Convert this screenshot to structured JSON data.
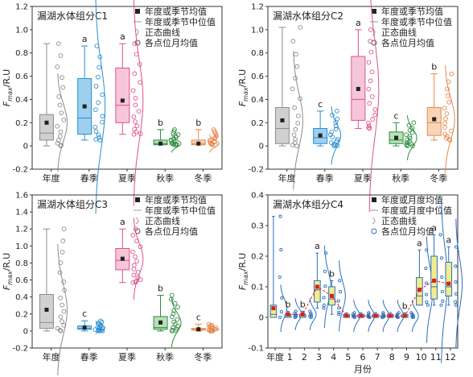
{
  "chart_data": [
    {
      "type": "box",
      "title": "漏湖水体组分C1",
      "ylabel_main": "F",
      "ylabel_sub": "max",
      "ylabel_unit": "/R.U",
      "ylim": [
        -0.2,
        1.2
      ],
      "yticks": [
        "-0.2",
        "0",
        "0.2",
        "0.4",
        "0.6",
        "0.8",
        "1.0",
        "1.2"
      ],
      "legend": [
        "年度或季节均值",
        "年度或季节中位值",
        "正态曲线",
        "各点位月均值"
      ],
      "categories": [
        "年度",
        "春季",
        "夏季",
        "秋季",
        "冬季"
      ],
      "colors": [
        "#8c8c8c",
        "#2b8fd0",
        "#e0518a",
        "#2e8b3e",
        "#e8874a"
      ],
      "fills": [
        "#d0d0d0",
        "#9ecfee",
        "#f6c6d8",
        "#b9dfb9",
        "#f8d5b8"
      ],
      "letters": [
        "",
        "a",
        "a",
        "b",
        "b"
      ],
      "boxes": [
        {
          "min": 0.0,
          "q1": 0.05,
          "median": 0.11,
          "q3": 0.27,
          "max": 0.88,
          "mean": 0.2
        },
        {
          "min": 0.05,
          "q1": 0.1,
          "median": 0.24,
          "q3": 0.58,
          "max": 0.86,
          "mean": 0.34
        },
        {
          "min": 0.1,
          "q1": 0.2,
          "median": 0.35,
          "q3": 0.67,
          "max": 0.88,
          "mean": 0.39
        },
        {
          "min": 0.01,
          "q1": 0.01,
          "median": 0.02,
          "q3": 0.05,
          "max": 0.14,
          "mean": 0.02
        },
        {
          "min": 0.01,
          "q1": 0.01,
          "median": 0.02,
          "q3": 0.05,
          "max": 0.14,
          "mean": 0.02
        }
      ]
    },
    {
      "type": "box",
      "title": "漏湖水体组分C2",
      "ylabel_main": "F",
      "ylabel_sub": "max",
      "ylabel_unit": "/R.U",
      "ylim": [
        -0.2,
        1.2
      ],
      "yticks": [
        "-0.2",
        "0",
        "0.2",
        "0.4",
        "0.6",
        "0.8",
        "1.0",
        "1.2"
      ],
      "legend": [
        "年度或季节均值",
        "年度或季节中位值",
        "正态曲线",
        "各点位月均值"
      ],
      "categories": [
        "年度",
        "春季",
        "夏季",
        "秋季",
        "冬季"
      ],
      "colors": [
        "#8c8c8c",
        "#2b8fd0",
        "#e0518a",
        "#2e8b3e",
        "#e8874a"
      ],
      "fills": [
        "#d0d0d0",
        "#9ecfee",
        "#f6c6d8",
        "#b9dfb9",
        "#f8d5b8"
      ],
      "letters": [
        "",
        "c",
        "a",
        "c",
        "b"
      ],
      "boxes": [
        {
          "min": 0.0,
          "q1": 0.02,
          "median": 0.15,
          "q3": 0.33,
          "max": 1.02,
          "mean": 0.22
        },
        {
          "min": 0.0,
          "q1": 0.02,
          "median": 0.07,
          "q3": 0.15,
          "max": 0.3,
          "mean": 0.09
        },
        {
          "min": 0.15,
          "q1": 0.22,
          "median": 0.4,
          "q3": 0.77,
          "max": 1.0,
          "mean": 0.49
        },
        {
          "min": 0.0,
          "q1": 0.02,
          "median": 0.05,
          "q3": 0.12,
          "max": 0.2,
          "mean": 0.07
        },
        {
          "min": 0.05,
          "q1": 0.09,
          "median": 0.2,
          "q3": 0.33,
          "max": 0.62,
          "mean": 0.23
        }
      ]
    },
    {
      "type": "box",
      "title": "漏湖水体组分C3",
      "ylabel_main": "F",
      "ylabel_sub": "max",
      "ylabel_unit": "/R.U",
      "ylim": [
        -0.2,
        1.6
      ],
      "yticks": [
        "-0.2",
        "0",
        "0.2",
        "0.4",
        "0.6",
        "0.8",
        "1.0",
        "1.2",
        "1.4",
        "1.6"
      ],
      "legend": [
        "年度或季节均值",
        "年度或季节中位值",
        "正态曲线",
        "各点位月均值"
      ],
      "categories": [
        "年度",
        "春季",
        "夏季",
        "秋季",
        "冬季"
      ],
      "colors": [
        "#8c8c8c",
        "#2b8fd0",
        "#e0518a",
        "#2e8b3e",
        "#e8874a"
      ],
      "fills": [
        "#d0d0d0",
        "#9ecfee",
        "#f6c6d8",
        "#b9dfb9",
        "#f8d5b8"
      ],
      "letters": [
        "",
        "c",
        "a",
        "b",
        "c"
      ],
      "boxes": [
        {
          "min": 0.0,
          "q1": 0.03,
          "median": 0.1,
          "q3": 0.43,
          "max": 1.2,
          "mean": 0.25
        },
        {
          "min": 0.0,
          "q1": 0.02,
          "median": 0.03,
          "q3": 0.06,
          "max": 0.12,
          "mean": 0.04
        },
        {
          "min": 0.57,
          "q1": 0.72,
          "median": 0.83,
          "q3": 0.97,
          "max": 1.2,
          "mean": 0.85
        },
        {
          "min": 0.0,
          "q1": 0.02,
          "median": 0.04,
          "q3": 0.17,
          "max": 0.42,
          "mean": 0.1
        },
        {
          "min": 0.0,
          "q1": 0.01,
          "median": 0.02,
          "q3": 0.03,
          "max": 0.08,
          "mean": 0.02
        }
      ]
    },
    {
      "type": "box",
      "title": "漏湖水体组分C4",
      "ylabel_main": "F",
      "ylabel_sub": "max",
      "ylabel_unit": "/R.U",
      "xlabel": "月份",
      "ylim": [
        -0.1,
        0.4
      ],
      "yticks": [
        "-0.1",
        "0",
        "0.1",
        "0.2",
        "0.3",
        "0.4"
      ],
      "legend": [
        "年度或月度均值",
        "年度或月度中位值",
        "正态曲线",
        "各点位月均值"
      ],
      "categories": [
        "年度",
        "1",
        "2",
        "3",
        "4",
        "5",
        "6",
        "7",
        "8",
        "9",
        "10",
        "11",
        "12"
      ],
      "box_color": "#2b6fc0",
      "box_fill": "#f3ec8c",
      "mean_color": "#d32020",
      "letters": [
        "",
        "b",
        "b",
        "a",
        "b",
        "",
        "",
        "",
        "",
        "b",
        "a",
        "a",
        "a"
      ],
      "boxes": [
        {
          "min": 0.0,
          "q1": 0.0,
          "median": 0.01,
          "q3": 0.04,
          "max": 0.33,
          "mean": 0.03
        },
        {
          "min": 0.0,
          "q1": 0.0,
          "median": 0.005,
          "q3": 0.01,
          "max": 0.02,
          "mean": 0.01
        },
        {
          "min": 0.0,
          "q1": 0.0,
          "median": 0.005,
          "q3": 0.01,
          "max": 0.02,
          "mean": 0.01
        },
        {
          "min": 0.03,
          "q1": 0.05,
          "median": 0.09,
          "q3": 0.12,
          "max": 0.21,
          "mean": 0.1
        },
        {
          "min": 0.01,
          "q1": 0.04,
          "median": 0.06,
          "q3": 0.1,
          "max": 0.12,
          "mean": 0.07
        },
        {
          "min": 0.0,
          "q1": 0.0,
          "median": 0.005,
          "q3": 0.01,
          "max": 0.015,
          "mean": 0.005
        },
        {
          "min": 0.0,
          "q1": 0.0,
          "median": 0.005,
          "q3": 0.01,
          "max": 0.015,
          "mean": 0.005
        },
        {
          "min": 0.0,
          "q1": 0.0,
          "median": 0.005,
          "q3": 0.01,
          "max": 0.015,
          "mean": 0.005
        },
        {
          "min": 0.0,
          "q1": 0.0,
          "median": 0.005,
          "q3": 0.01,
          "max": 0.015,
          "mean": 0.005
        },
        {
          "min": 0.0,
          "q1": 0.0,
          "median": 0.005,
          "q3": 0.01,
          "max": 0.015,
          "mean": 0.005
        },
        {
          "min": 0.04,
          "q1": 0.04,
          "median": 0.07,
          "q3": 0.13,
          "max": 0.22,
          "mean": 0.09
        },
        {
          "min": 0.04,
          "q1": 0.06,
          "median": 0.1,
          "q3": 0.2,
          "max": 0.27,
          "mean": 0.12
        },
        {
          "min": 0.04,
          "q1": 0.07,
          "median": 0.1,
          "q3": 0.18,
          "max": 0.23,
          "mean": 0.11
        }
      ]
    }
  ]
}
